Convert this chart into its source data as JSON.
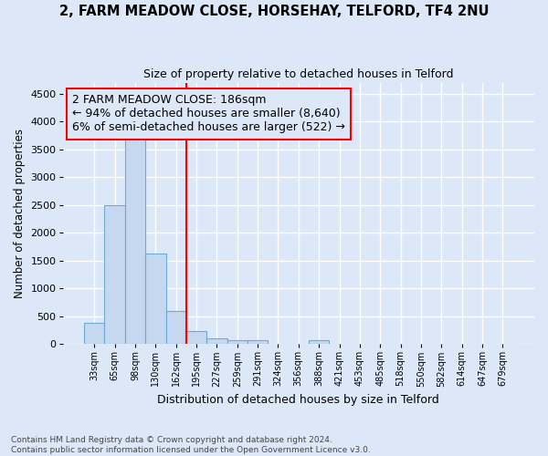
{
  "title1": "2, FARM MEADOW CLOSE, HORSEHAY, TELFORD, TF4 2NU",
  "title2": "Size of property relative to detached houses in Telford",
  "xlabel": "Distribution of detached houses by size in Telford",
  "ylabel": "Number of detached properties",
  "bin_labels": [
    "33sqm",
    "65sqm",
    "98sqm",
    "130sqm",
    "162sqm",
    "195sqm",
    "227sqm",
    "259sqm",
    "291sqm",
    "324sqm",
    "356sqm",
    "388sqm",
    "421sqm",
    "453sqm",
    "485sqm",
    "518sqm",
    "550sqm",
    "582sqm",
    "614sqm",
    "647sqm",
    "679sqm"
  ],
  "bar_values": [
    375,
    2500,
    3700,
    1620,
    600,
    240,
    110,
    70,
    70,
    0,
    0,
    70,
    0,
    0,
    0,
    0,
    0,
    0,
    0,
    0,
    0
  ],
  "bar_color": "#c5d8f0",
  "bar_edgecolor": "#6aaad4",
  "background_color": "#dce8f8",
  "grid_color": "#ffffff",
  "vline_x": 4.5,
  "vline_color": "red",
  "annotation_text": "2 FARM MEADOW CLOSE: 186sqm\n← 94% of detached houses are smaller (8,640)\n6% of semi-detached houses are larger (522) →",
  "annotation_box_edgecolor": "red",
  "annotation_fontsize": 9,
  "ylim": [
    0,
    4700
  ],
  "yticks": [
    0,
    500,
    1000,
    1500,
    2000,
    2500,
    3000,
    3500,
    4000,
    4500
  ],
  "footnote": "Contains HM Land Registry data © Crown copyright and database right 2024.\nContains public sector information licensed under the Open Government Licence v3.0.",
  "title1_fontsize": 10.5,
  "title2_fontsize": 9,
  "xlabel_fontsize": 9,
  "ylabel_fontsize": 8.5
}
